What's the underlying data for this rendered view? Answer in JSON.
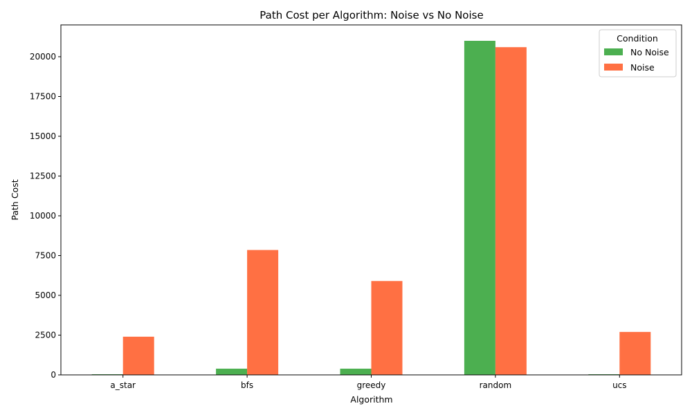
{
  "chart_data": {
    "type": "bar",
    "title": "Path Cost per Algorithm: Noise vs No Noise",
    "xlabel": "Algorithm",
    "ylabel": "Path Cost",
    "categories": [
      "a_star",
      "bfs",
      "greedy",
      "random",
      "ucs"
    ],
    "series": [
      {
        "name": "No Noise",
        "color": "#4caf50",
        "values": [
          40,
          390,
          390,
          21000,
          40
        ]
      },
      {
        "name": "Noise",
        "color": "#ff7043",
        "values": [
          2400,
          7850,
          5900,
          20600,
          2700
        ]
      }
    ],
    "ylim": [
      0,
      22000
    ],
    "yticks": [
      0,
      2500,
      5000,
      7500,
      10000,
      12500,
      15000,
      17500,
      20000
    ],
    "grid": false,
    "legend": {
      "title": "Condition",
      "position": "top-right"
    }
  }
}
